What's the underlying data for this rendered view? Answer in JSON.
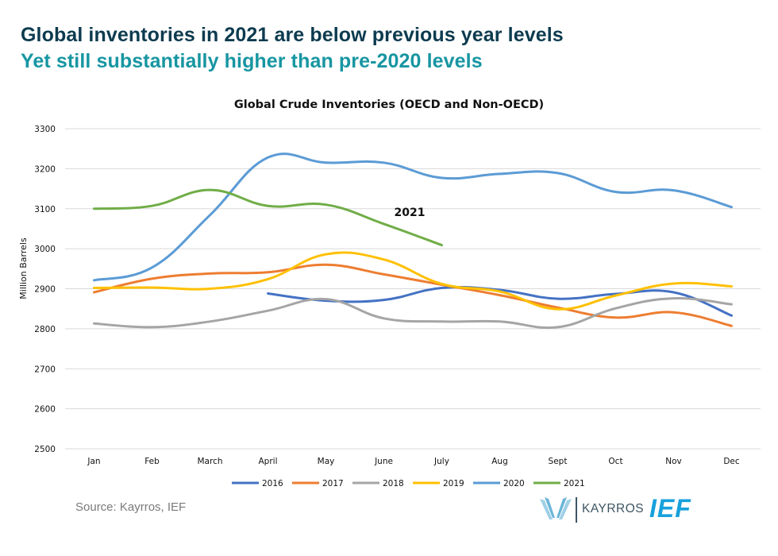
{
  "header": {
    "title": "Global inventories in 2021 are below previous year levels",
    "subtitle": "Yet still substantially higher than pre-2020 levels"
  },
  "source": "Source: Kayrros, IEF",
  "logos": {
    "kayrros": "KAYRROS",
    "ief": "IEF"
  },
  "chart_data": {
    "type": "line",
    "title": "Global Crude Inventories (OECD and Non-OECD)",
    "xlabel": "",
    "ylabel": "Million Barrels",
    "ylim": [
      2500,
      3300
    ],
    "yticks": [
      2500,
      2600,
      2700,
      2800,
      2900,
      3000,
      3100,
      3200,
      3300
    ],
    "grid": true,
    "legend": "bottom",
    "categories": [
      "Jan",
      "Feb",
      "March",
      "April",
      "May",
      "June",
      "July",
      "Aug",
      "Sept",
      "Oct",
      "Nov",
      "Dec"
    ],
    "annotation": "2021",
    "series": [
      {
        "name": "2016",
        "color": "#4472c4",
        "values": [
          null,
          null,
          null,
          2888,
          2870,
          2872,
          2902,
          2897,
          2875,
          2887,
          2891,
          2833
        ]
      },
      {
        "name": "2017",
        "color": "#ed7d31",
        "values": [
          2891,
          2925,
          2938,
          2941,
          2960,
          2936,
          2910,
          2884,
          2853,
          2828,
          2841,
          2807
        ]
      },
      {
        "name": "2018",
        "color": "#a5a5a5",
        "values": [
          2813,
          2804,
          2818,
          2845,
          2874,
          2826,
          2818,
          2818,
          2804,
          2851,
          2876,
          2861
        ]
      },
      {
        "name": "2019",
        "color": "#ffc000",
        "values": [
          2902,
          2903,
          2900,
          2924,
          2986,
          2973,
          2912,
          2893,
          2849,
          2883,
          2913,
          2906
        ]
      },
      {
        "name": "2020",
        "color": "#5b9bd5",
        "values": [
          2921,
          2953,
          3084,
          3228,
          3215,
          3215,
          3177,
          3187,
          3189,
          3142,
          3146,
          3104
        ]
      },
      {
        "name": "2021",
        "color": "#70ad47",
        "values": [
          3100,
          3107,
          3147,
          3107,
          3110,
          3062,
          3009,
          null,
          null,
          null,
          null,
          null
        ]
      }
    ]
  }
}
